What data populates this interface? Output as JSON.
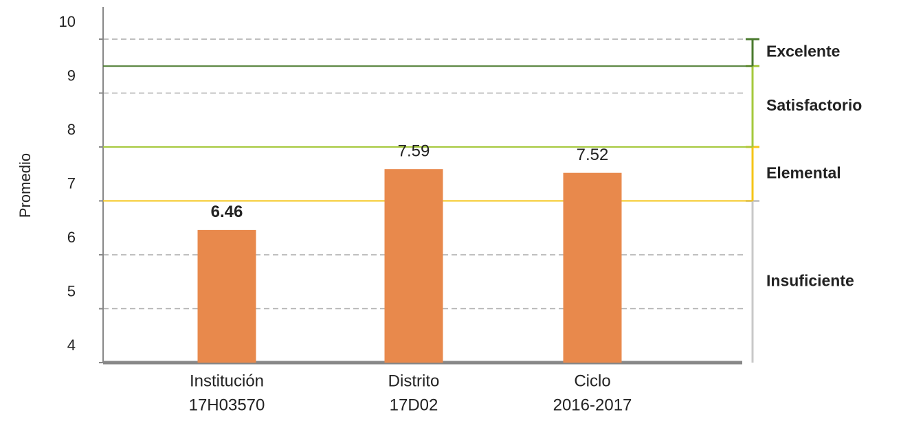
{
  "chart_data": {
    "type": "bar",
    "y_label": "Promedio",
    "categories": [
      [
        "Institución",
        "17H03570"
      ],
      [
        "Distrito",
        "17D02"
      ],
      [
        "Ciclo",
        "2016-2017"
      ]
    ],
    "values": [
      6.46,
      7.59,
      7.52
    ],
    "value_label_colors": [
      "#1f5aa8",
      "#222222",
      "#222222"
    ],
    "color": "#e8894c",
    "ylim": [
      4,
      10
    ],
    "yticks": [
      4,
      5,
      6,
      7,
      8,
      9,
      10
    ],
    "grid": true,
    "levels": [
      {
        "name": "Insuficiente",
        "from": 4,
        "to": 7,
        "color": "#c8c8c8"
      },
      {
        "name": "Elemental",
        "from": 7,
        "to": 8,
        "color": "#f5c518"
      },
      {
        "name": "Satisfactorio",
        "from": 8,
        "to": 9.5,
        "color": "#a5c83c"
      },
      {
        "name": "Excelente",
        "from": 9.5,
        "to": 10,
        "color": "#4a7a2e"
      }
    ]
  }
}
